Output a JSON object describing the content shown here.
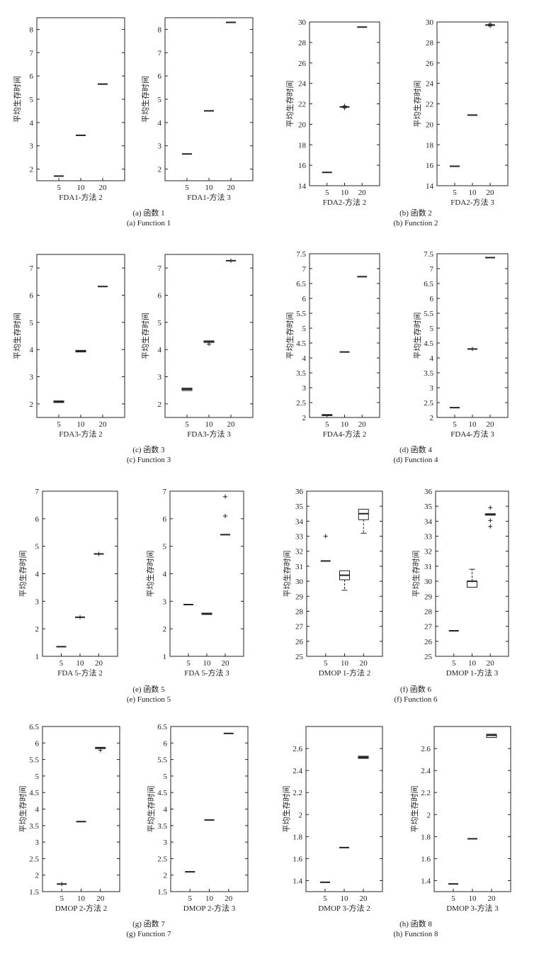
{
  "chart_data": [
    {
      "type": "box",
      "ylabel": "平均生存时间",
      "xlabel": "FDA1-方法 2",
      "categories": [
        "5",
        "10",
        "20"
      ],
      "ylim": [
        1.5,
        8.5
      ],
      "yticks": [
        2,
        3,
        4,
        5,
        6,
        7,
        8
      ],
      "boxes": [
        {
          "median": 1.7,
          "q1": 1.68,
          "q3": 1.72,
          "whislo": 1.68,
          "whishi": 1.72,
          "outliers": []
        },
        {
          "median": 3.45,
          "q1": 3.45,
          "q3": 3.45,
          "whislo": 3.45,
          "whishi": 3.45,
          "outliers": []
        },
        {
          "median": 5.65,
          "q1": 5.64,
          "q3": 5.66,
          "whislo": 5.64,
          "whishi": 5.66,
          "outliers": []
        }
      ]
    },
    {
      "type": "box",
      "ylabel": "平均生存时间",
      "xlabel": "FDA1-方法 3",
      "categories": [
        "5",
        "10",
        "20"
      ],
      "ylim": [
        1.5,
        8.5
      ],
      "yticks": [
        2,
        3,
        4,
        5,
        6,
        7,
        8
      ],
      "boxes": [
        {
          "median": 2.65,
          "q1": 2.63,
          "q3": 2.67,
          "whislo": 2.63,
          "whishi": 2.67,
          "outliers": []
        },
        {
          "median": 4.5,
          "q1": 4.5,
          "q3": 4.5,
          "whislo": 4.5,
          "whishi": 4.5,
          "outliers": []
        },
        {
          "median": 8.3,
          "q1": 8.28,
          "q3": 8.32,
          "whislo": 8.28,
          "whishi": 8.32,
          "outliers": []
        }
      ]
    },
    {
      "type": "box",
      "ylabel": "平均生存时间",
      "xlabel": "FDA2-方法 2",
      "categories": [
        "5",
        "10",
        "20"
      ],
      "ylim": [
        14,
        30
      ],
      "yticks": [
        14,
        16,
        18,
        20,
        22,
        24,
        26,
        28,
        30
      ],
      "boxes": [
        {
          "median": 15.3,
          "q1": 15.3,
          "q3": 15.3,
          "whislo": 15.3,
          "whishi": 15.3,
          "outliers": []
        },
        {
          "median": 21.7,
          "q1": 21.7,
          "q3": 21.7,
          "whislo": 21.7,
          "whishi": 21.7,
          "outliers": [
            21.6,
            21.8
          ]
        },
        {
          "median": 29.5,
          "q1": 29.5,
          "q3": 29.5,
          "whislo": 29.5,
          "whishi": 29.5,
          "outliers": []
        }
      ]
    },
    {
      "type": "box",
      "ylabel": "平均生存时间",
      "xlabel": "FDA2-方法 3",
      "categories": [
        "5",
        "10",
        "20"
      ],
      "ylim": [
        14,
        30
      ],
      "yticks": [
        14,
        16,
        18,
        20,
        22,
        24,
        26,
        28,
        30
      ],
      "boxes": [
        {
          "median": 15.9,
          "q1": 15.9,
          "q3": 15.9,
          "whislo": 15.9,
          "whishi": 15.9,
          "outliers": []
        },
        {
          "median": 20.9,
          "q1": 20.9,
          "q3": 20.9,
          "whislo": 20.9,
          "whishi": 20.9,
          "outliers": []
        },
        {
          "median": 29.7,
          "q1": 29.7,
          "q3": 29.7,
          "whislo": 29.7,
          "whishi": 29.7,
          "outliers": [
            29.6,
            29.8
          ]
        }
      ]
    },
    {
      "type": "box",
      "ylabel": "平均生存时间",
      "xlabel": "FDA3-方法 2",
      "categories": [
        "5",
        "10",
        "20"
      ],
      "ylim": [
        1.5,
        7.5
      ],
      "yticks": [
        2,
        3,
        4,
        5,
        6,
        7
      ],
      "boxes": [
        {
          "median": 2.08,
          "q1": 2.05,
          "q3": 2.11,
          "whislo": 2.05,
          "whishi": 2.11,
          "outliers": []
        },
        {
          "median": 3.94,
          "q1": 3.91,
          "q3": 3.97,
          "whislo": 3.91,
          "whishi": 3.97,
          "outliers": []
        },
        {
          "median": 6.32,
          "q1": 6.32,
          "q3": 6.32,
          "whislo": 6.32,
          "whishi": 6.32,
          "outliers": []
        }
      ]
    },
    {
      "type": "box",
      "ylabel": "平均生存时间",
      "xlabel": "FDA3-方法 3",
      "categories": [
        "5",
        "10",
        "20"
      ],
      "ylim": [
        1.5,
        7.5
      ],
      "yticks": [
        2,
        3,
        4,
        5,
        6,
        7
      ],
      "boxes": [
        {
          "median": 2.54,
          "q1": 2.49,
          "q3": 2.58,
          "whislo": 2.49,
          "whishi": 2.58,
          "outliers": []
        },
        {
          "median": 4.3,
          "q1": 4.26,
          "q3": 4.32,
          "whislo": 4.26,
          "whishi": 4.32,
          "outliers": [
            4.2
          ]
        },
        {
          "median": 7.27,
          "q1": 7.27,
          "q3": 7.27,
          "whislo": 7.27,
          "whishi": 7.27,
          "outliers": [
            7.27
          ]
        }
      ]
    },
    {
      "type": "box",
      "ylabel": "平均生存时间",
      "xlabel": "FDA4-方法 2",
      "categories": [
        "5",
        "10",
        "20"
      ],
      "ylim": [
        2,
        7.5
      ],
      "yticks": [
        2,
        2.5,
        3,
        3.5,
        4,
        4.5,
        5,
        5.5,
        6,
        6.5,
        7,
        7.5
      ],
      "boxes": [
        {
          "median": 2.08,
          "q1": 2.06,
          "q3": 2.1,
          "whislo": 2.06,
          "whishi": 2.1,
          "outliers": []
        },
        {
          "median": 4.2,
          "q1": 4.2,
          "q3": 4.2,
          "whislo": 4.2,
          "whishi": 4.2,
          "outliers": []
        },
        {
          "median": 6.73,
          "q1": 6.72,
          "q3": 6.74,
          "whislo": 6.72,
          "whishi": 6.74,
          "outliers": []
        }
      ]
    },
    {
      "type": "box",
      "ylabel": "平均生存时间",
      "xlabel": "FDA4-方法 3",
      "categories": [
        "5",
        "10",
        "20"
      ],
      "ylim": [
        2,
        7.5
      ],
      "yticks": [
        2,
        2.5,
        3,
        3.5,
        4,
        4.5,
        5,
        5.5,
        6,
        6.5,
        7,
        7.5
      ],
      "boxes": [
        {
          "median": 2.33,
          "q1": 2.33,
          "q3": 2.33,
          "whislo": 2.33,
          "whishi": 2.33,
          "outliers": []
        },
        {
          "median": 4.3,
          "q1": 4.3,
          "q3": 4.3,
          "whislo": 4.3,
          "whishi": 4.3,
          "outliers": [
            4.3
          ]
        },
        {
          "median": 7.37,
          "q1": 7.36,
          "q3": 7.38,
          "whislo": 7.36,
          "whishi": 7.38,
          "outliers": []
        }
      ]
    },
    {
      "type": "box",
      "ylabel": "平均生存时间",
      "xlabel": "FDA 5-方法 2",
      "categories": [
        "5",
        "10",
        "20"
      ],
      "ylim": [
        1,
        7
      ],
      "yticks": [
        1,
        2,
        3,
        4,
        5,
        6,
        7
      ],
      "boxes": [
        {
          "median": 1.35,
          "q1": 1.35,
          "q3": 1.35,
          "whislo": 1.35,
          "whishi": 1.35,
          "outliers": []
        },
        {
          "median": 2.42,
          "q1": 2.42,
          "q3": 2.42,
          "whislo": 2.42,
          "whishi": 2.42,
          "outliers": [
            2.42
          ]
        },
        {
          "median": 4.72,
          "q1": 4.72,
          "q3": 4.72,
          "whislo": 4.72,
          "whishi": 4.72,
          "outliers": [
            4.72
          ]
        }
      ]
    },
    {
      "type": "box",
      "ylabel": "平均生存时间",
      "xlabel": "FDA 5-方法 3",
      "categories": [
        "5",
        "10",
        "20"
      ],
      "ylim": [
        1,
        7
      ],
      "yticks": [
        1,
        2,
        3,
        4,
        5,
        6,
        7
      ],
      "boxes": [
        {
          "median": 2.88,
          "q1": 2.88,
          "q3": 2.88,
          "whislo": 2.88,
          "whishi": 2.88,
          "outliers": []
        },
        {
          "median": 2.55,
          "q1": 2.52,
          "q3": 2.57,
          "whislo": 2.52,
          "whishi": 2.57,
          "outliers": []
        },
        {
          "median": 5.42,
          "q1": 5.42,
          "q3": 5.42,
          "whislo": 5.42,
          "whishi": 5.42,
          "outliers": [
            6.1,
            6.8
          ]
        }
      ]
    },
    {
      "type": "box",
      "ylabel": "平均生存时间",
      "xlabel": "DMOP 1-方法 2",
      "categories": [
        "5",
        "10",
        "20"
      ],
      "ylim": [
        25,
        36
      ],
      "yticks": [
        25,
        26,
        27,
        28,
        29,
        30,
        31,
        32,
        33,
        34,
        35,
        36
      ],
      "boxes": [
        {
          "median": 31.35,
          "q1": 31.35,
          "q3": 31.35,
          "whislo": 31.35,
          "whishi": 31.35,
          "outliers": [
            33.0
          ]
        },
        {
          "median": 30.4,
          "q1": 30.1,
          "q3": 30.7,
          "whislo": 29.4,
          "whishi": 30.7,
          "outliers": []
        },
        {
          "median": 34.5,
          "q1": 34.1,
          "q3": 34.8,
          "whislo": 33.2,
          "whishi": 34.8,
          "outliers": []
        }
      ]
    },
    {
      "type": "box",
      "ylabel": "平均生存时间",
      "xlabel": "DMOP 1-方法 3",
      "categories": [
        "5",
        "10",
        "20"
      ],
      "ylim": [
        25,
        36
      ],
      "yticks": [
        25,
        26,
        27,
        28,
        29,
        30,
        31,
        32,
        33,
        34,
        35,
        36
      ],
      "boxes": [
        {
          "median": 26.7,
          "q1": 26.7,
          "q3": 26.7,
          "whislo": 26.7,
          "whishi": 26.7,
          "outliers": []
        },
        {
          "median": 30.0,
          "q1": 29.6,
          "q3": 30.0,
          "whislo": 29.6,
          "whishi": 30.8,
          "outliers": []
        },
        {
          "median": 34.45,
          "q1": 34.4,
          "q3": 34.5,
          "whislo": 34.4,
          "whishi": 34.5,
          "outliers": [
            34.9,
            34.05,
            33.65
          ]
        }
      ]
    },
    {
      "type": "box",
      "ylabel": "平均生存时间",
      "xlabel": "DMOP 2-方法 2",
      "categories": [
        "5",
        "10",
        "20"
      ],
      "ylim": [
        1.5,
        6.5
      ],
      "yticks": [
        1.5,
        2,
        2.5,
        3,
        3.5,
        4,
        4.5,
        5,
        5.5,
        6,
        6.5
      ],
      "boxes": [
        {
          "median": 1.73,
          "q1": 1.72,
          "q3": 1.75,
          "whislo": 1.72,
          "whishi": 1.75,
          "outliers": [
            1.73
          ]
        },
        {
          "median": 3.62,
          "q1": 3.62,
          "q3": 3.62,
          "whislo": 3.62,
          "whishi": 3.62,
          "outliers": []
        },
        {
          "median": 5.85,
          "q1": 5.83,
          "q3": 5.87,
          "whislo": 5.83,
          "whishi": 5.87,
          "outliers": [
            5.78
          ]
        }
      ]
    },
    {
      "type": "box",
      "ylabel": "平均生存时间",
      "xlabel": "DMOP 2-方法 3",
      "categories": [
        "5",
        "10",
        "20"
      ],
      "ylim": [
        1.5,
        6.5
      ],
      "yticks": [
        1.5,
        2,
        2.5,
        3,
        3.5,
        4,
        4.5,
        5,
        5.5,
        6,
        6.5
      ],
      "boxes": [
        {
          "median": 2.1,
          "q1": 2.1,
          "q3": 2.1,
          "whislo": 2.1,
          "whishi": 2.1,
          "outliers": []
        },
        {
          "median": 3.67,
          "q1": 3.67,
          "q3": 3.67,
          "whislo": 3.67,
          "whishi": 3.67,
          "outliers": []
        },
        {
          "median": 6.29,
          "q1": 6.29,
          "q3": 6.29,
          "whislo": 6.29,
          "whishi": 6.29,
          "outliers": []
        }
      ]
    },
    {
      "type": "box",
      "ylabel": "平均生存时间",
      "xlabel": "DMOP 3-方法 2",
      "categories": [
        "5",
        "10",
        "20"
      ],
      "ylim": [
        1.3,
        2.8
      ],
      "yticks": [
        1.4,
        1.6,
        1.8,
        2,
        2.2,
        2.4,
        2.6
      ],
      "boxes": [
        {
          "median": 1.385,
          "q1": 1.385,
          "q3": 1.385,
          "whislo": 1.385,
          "whishi": 1.385,
          "outliers": []
        },
        {
          "median": 1.7,
          "q1": 1.7,
          "q3": 1.7,
          "whislo": 1.7,
          "whishi": 1.7,
          "outliers": []
        },
        {
          "median": 2.52,
          "q1": 2.51,
          "q3": 2.53,
          "whislo": 2.51,
          "whishi": 2.53,
          "outliers": []
        }
      ]
    },
    {
      "type": "box",
      "ylabel": "平均生存时间",
      "xlabel": "DMOP 3-方法 3",
      "categories": [
        "5",
        "10",
        "20"
      ],
      "ylim": [
        1.3,
        2.8
      ],
      "yticks": [
        1.4,
        1.6,
        1.8,
        2,
        2.2,
        2.4,
        2.6
      ],
      "boxes": [
        {
          "median": 1.37,
          "q1": 1.37,
          "q3": 1.37,
          "whislo": 1.37,
          "whishi": 1.37,
          "outliers": []
        },
        {
          "median": 1.78,
          "q1": 1.78,
          "q3": 1.78,
          "whislo": 1.78,
          "whishi": 1.78,
          "outliers": []
        },
        {
          "median": 2.72,
          "q1": 2.7,
          "q3": 2.73,
          "whislo": 2.7,
          "whishi": 2.73,
          "outliers": []
        }
      ]
    }
  ],
  "captions": [
    {
      "zh": "(a) 函数 1",
      "en": "(a) Function 1"
    },
    {
      "zh": "(b) 函数 2",
      "en": "(b) Function 2"
    },
    {
      "zh": "(c) 函数 3",
      "en": "(c) Function 3"
    },
    {
      "zh": "(d) 函数 4",
      "en": "(d) Function 4"
    },
    {
      "zh": "(e) 函数 5",
      "en": "(e) Function 5"
    },
    {
      "zh": "(f) 函数 6",
      "en": "(f) Function 6"
    },
    {
      "zh": "(g) 函数 7",
      "en": "(g) Function 7"
    },
    {
      "zh": "(h) 函数 8",
      "en": "(h) Function 8"
    }
  ]
}
